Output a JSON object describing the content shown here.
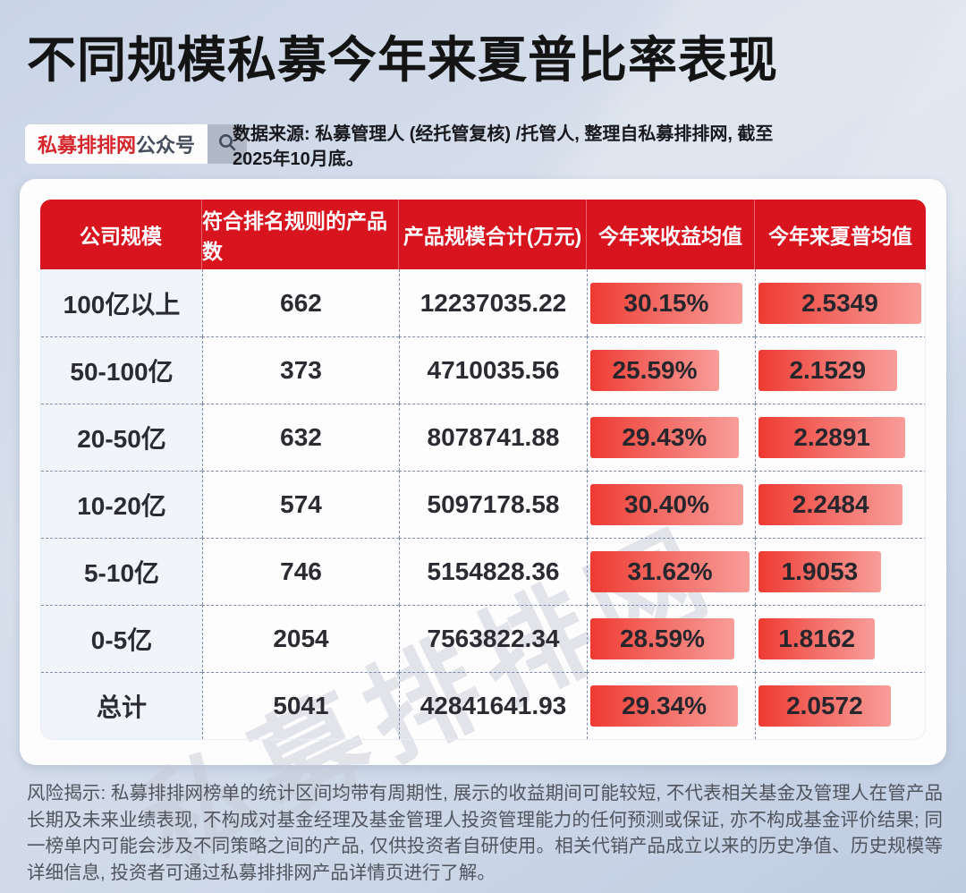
{
  "page": {
    "title": "不同规模私募今年来夏普比率表现",
    "brand": {
      "name": "私募排排网",
      "suffix": "公众号"
    },
    "source_note": "数据来源: 私募管理人 (经托管复核) /托管人, 整理自私募排排网, 截至2025年10月底。",
    "watermark": "私募排排网",
    "risk_note": "风险揭示: 私募排排网榜单的统计区间均带有周期性, 展示的收益期间可能较短, 不代表相关基金及管理人在管产品长期及未来业绩表现, 不构成对基金经理及基金管理人投资管理能力的任何预测或保证, 亦不构成基金评价结果; 同一榜单内可能会涉及不同策略之间的产品, 仅供投资者自研使用。相关代销产品成立以来的历史净值、历史规模等详细信息, 投资者可通过私募排排网产品详情页进行了解。"
  },
  "colors": {
    "header_red": "#d8141e",
    "bar_gradient_start": "#ee3a31",
    "bar_gradient_end": "#f89d99",
    "brand_red": "#d6252b",
    "dashed_border": "#7f8bb0",
    "first_col_tint": "#f1f5fa",
    "background": "#ccd6e7"
  },
  "table": {
    "columns": [
      "公司规模",
      "符合排名规则的产品数",
      "产品规模合计(万元)",
      "今年来收益均值",
      "今年来夏普均值"
    ],
    "rows": [
      {
        "size": "100亿以上",
        "count": "662",
        "scale": "12237035.22",
        "return": "30.15%",
        "return_value": 30.15,
        "sharpe": "2.5349",
        "sharpe_value": 2.5349
      },
      {
        "size": "50-100亿",
        "count": "373",
        "scale": "4710035.56",
        "return": "25.59%",
        "return_value": 25.59,
        "sharpe": "2.1529",
        "sharpe_value": 2.1529
      },
      {
        "size": "20-50亿",
        "count": "632",
        "scale": "8078741.88",
        "return": "29.43%",
        "return_value": 29.43,
        "sharpe": "2.2891",
        "sharpe_value": 2.2891
      },
      {
        "size": "10-20亿",
        "count": "574",
        "scale": "5097178.58",
        "return": "30.40%",
        "return_value": 30.4,
        "sharpe": "2.2484",
        "sharpe_value": 2.2484
      },
      {
        "size": "5-10亿",
        "count": "746",
        "scale": "5154828.36",
        "return": "31.62%",
        "return_value": 31.62,
        "sharpe": "1.9053",
        "sharpe_value": 1.9053
      },
      {
        "size": "0-5亿",
        "count": "2054",
        "scale": "7563822.34",
        "return": "28.59%",
        "return_value": 28.59,
        "sharpe": "1.8162",
        "sharpe_value": 1.8162
      },
      {
        "size": "总计",
        "count": "5041",
        "scale": "42841641.93",
        "return": "29.34%",
        "return_value": 29.34,
        "sharpe": "2.0572",
        "sharpe_value": 2.0572
      }
    ]
  },
  "chart_data": {
    "type": "table",
    "title": "不同规模私募今年来夏普比率表现",
    "columns": [
      "公司规模",
      "符合排名规则的产品数",
      "产品规模合计(万元)",
      "今年来收益均值",
      "今年来夏普均值"
    ],
    "rows": [
      [
        "100亿以上",
        662,
        12237035.22,
        "30.15%",
        2.5349
      ],
      [
        "50-100亿",
        373,
        4710035.56,
        "25.59%",
        2.1529
      ],
      [
        "20-50亿",
        632,
        8078741.88,
        "29.43%",
        2.2891
      ],
      [
        "10-20亿",
        574,
        5097178.58,
        "30.40%",
        2.2484
      ],
      [
        "5-10亿",
        746,
        5154828.36,
        "31.62%",
        1.9053
      ],
      [
        "0-5亿",
        2054,
        7563822.34,
        "28.59%",
        1.8162
      ],
      [
        "总计",
        5041,
        42841641.93,
        "29.34%",
        2.0572
      ]
    ],
    "layout_hints": "今年来收益均值 and 今年来夏普均值 cells drawn as red gradient bars, width proportional to value; column max = full width (31.62% and 2.5349)"
  }
}
